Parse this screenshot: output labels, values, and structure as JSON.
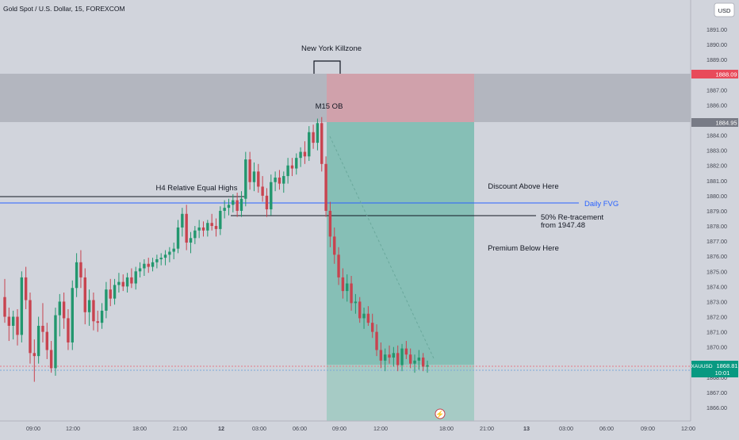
{
  "header": {
    "symbol_title": "Gold Spot / U.S. Dollar, 15, FOREXCOM",
    "currency_button": "USD"
  },
  "colors": {
    "background": "#d1d4dc",
    "bull": "#22976e",
    "bear": "#c8434f",
    "zone_grey": "#b3b6bf",
    "stop_zone": "#d0a1ab",
    "target_zone": "#86bfb6",
    "fvg_line": "#2962ff",
    "axis_text": "#434651",
    "price_red": "#e84a5a",
    "price_grey": "#787b86",
    "price_green": "#089981"
  },
  "price_axis": {
    "ticks": [
      "1891.00",
      "1890.00",
      "1889.00",
      "1888.00",
      "1887.00",
      "1886.00",
      "1885.00",
      "1884.00",
      "1883.00",
      "1882.00",
      "1881.00",
      "1880.00",
      "1879.00",
      "1878.00",
      "1877.00",
      "1876.00",
      "1875.00",
      "1874.00",
      "1873.00",
      "1872.00",
      "1871.00",
      "1870.00",
      "1869.00",
      "1868.00",
      "1867.00",
      "1866.00"
    ],
    "badge_top": "1888.09",
    "badge_bottom": "1884.95",
    "current_symbol": "XAUUSD",
    "current_price": "1868.81",
    "countdown": "10:01"
  },
  "time_axis": {
    "labels": [
      "09:00",
      "12:00",
      "18:00",
      "21:00",
      "12",
      "03:00",
      "06:00",
      "09:00",
      "12:00",
      "18:00",
      "21:00",
      "13",
      "03:00",
      "06:00",
      "09:00",
      "12:00"
    ]
  },
  "annotations": {
    "killzone": "New York Killzone",
    "ob": "M15 OB",
    "equal_highs": "H4 Relative Equal Highs",
    "discount": "Discount Above Here",
    "fvg": "Daily FVG",
    "retrace_line1": "50% Re-tracement",
    "retrace_line2": "from 1947.48",
    "premium": "Premium Below Here"
  },
  "chart_data": {
    "type": "candlestick",
    "timeframe": "15",
    "ylim": [
      1865.3,
      1891.9
    ],
    "levels": {
      "supply_zone": [
        1884.95,
        1888.09
      ],
      "equal_highs": 1879.6,
      "daily_fvg": 1879.4,
      "retracement_50": 1878.9,
      "current_price": 1868.81
    },
    "position": {
      "side": "short",
      "entry": 1884.95,
      "stop": 1888.09,
      "target_top": 1868.8,
      "target_bottom": 1865.3
    },
    "candles": [
      {
        "o": 1873.3,
        "h": 1874.5,
        "l": 1871.6,
        "c": 1872.0
      },
      {
        "o": 1872.0,
        "h": 1872.6,
        "l": 1870.4,
        "c": 1871.4
      },
      {
        "o": 1871.4,
        "h": 1872.4,
        "l": 1870.5,
        "c": 1872.0
      },
      {
        "o": 1872.0,
        "h": 1872.5,
        "l": 1870.1,
        "c": 1870.8
      },
      {
        "o": 1870.8,
        "h": 1875.0,
        "l": 1870.3,
        "c": 1874.6
      },
      {
        "o": 1874.6,
        "h": 1875.3,
        "l": 1872.5,
        "c": 1873.1
      },
      {
        "o": 1873.1,
        "h": 1873.6,
        "l": 1868.9,
        "c": 1869.6
      },
      {
        "o": 1869.6,
        "h": 1870.5,
        "l": 1867.7,
        "c": 1869.4
      },
      {
        "o": 1869.4,
        "h": 1872.0,
        "l": 1868.9,
        "c": 1871.4
      },
      {
        "o": 1871.4,
        "h": 1872.9,
        "l": 1870.3,
        "c": 1871.0
      },
      {
        "o": 1871.0,
        "h": 1871.6,
        "l": 1869.2,
        "c": 1869.8
      },
      {
        "o": 1869.8,
        "h": 1870.4,
        "l": 1868.3,
        "c": 1868.6
      },
      {
        "o": 1868.6,
        "h": 1872.6,
        "l": 1868.1,
        "c": 1872.1
      },
      {
        "o": 1872.1,
        "h": 1873.5,
        "l": 1870.7,
        "c": 1873.0
      },
      {
        "o": 1873.0,
        "h": 1873.6,
        "l": 1871.2,
        "c": 1871.9
      },
      {
        "o": 1871.9,
        "h": 1872.5,
        "l": 1869.8,
        "c": 1870.3
      },
      {
        "o": 1870.3,
        "h": 1874.4,
        "l": 1869.8,
        "c": 1873.9
      },
      {
        "o": 1873.9,
        "h": 1876.2,
        "l": 1873.3,
        "c": 1875.6
      },
      {
        "o": 1875.6,
        "h": 1876.4,
        "l": 1873.9,
        "c": 1874.6
      },
      {
        "o": 1874.6,
        "h": 1875.2,
        "l": 1871.5,
        "c": 1872.3
      },
      {
        "o": 1872.3,
        "h": 1873.8,
        "l": 1871.4,
        "c": 1873.1
      },
      {
        "o": 1873.1,
        "h": 1873.6,
        "l": 1871.1,
        "c": 1871.7
      },
      {
        "o": 1871.7,
        "h": 1872.4,
        "l": 1871.0,
        "c": 1871.6
      },
      {
        "o": 1871.6,
        "h": 1872.9,
        "l": 1871.2,
        "c": 1872.4
      },
      {
        "o": 1872.4,
        "h": 1874.3,
        "l": 1871.9,
        "c": 1873.8
      },
      {
        "o": 1873.8,
        "h": 1874.5,
        "l": 1872.7,
        "c": 1873.2
      },
      {
        "o": 1873.2,
        "h": 1874.5,
        "l": 1872.8,
        "c": 1874.1
      },
      {
        "o": 1874.1,
        "h": 1874.9,
        "l": 1873.6,
        "c": 1874.3
      },
      {
        "o": 1874.3,
        "h": 1874.8,
        "l": 1873.7,
        "c": 1874.0
      },
      {
        "o": 1874.0,
        "h": 1874.9,
        "l": 1873.6,
        "c": 1874.6
      },
      {
        "o": 1874.6,
        "h": 1875.2,
        "l": 1873.9,
        "c": 1874.2
      },
      {
        "o": 1874.2,
        "h": 1875.3,
        "l": 1873.8,
        "c": 1875.0
      },
      {
        "o": 1875.0,
        "h": 1875.6,
        "l": 1874.6,
        "c": 1875.2
      },
      {
        "o": 1875.2,
        "h": 1875.8,
        "l": 1874.7,
        "c": 1875.5
      },
      {
        "o": 1875.5,
        "h": 1875.9,
        "l": 1874.9,
        "c": 1875.3
      },
      {
        "o": 1875.3,
        "h": 1875.9,
        "l": 1875.0,
        "c": 1875.6
      },
      {
        "o": 1875.6,
        "h": 1876.1,
        "l": 1875.2,
        "c": 1875.8
      },
      {
        "o": 1875.8,
        "h": 1876.2,
        "l": 1875.4,
        "c": 1875.9
      },
      {
        "o": 1875.9,
        "h": 1876.4,
        "l": 1875.4,
        "c": 1876.1
      },
      {
        "o": 1876.1,
        "h": 1876.6,
        "l": 1875.6,
        "c": 1876.3
      },
      {
        "o": 1876.3,
        "h": 1876.9,
        "l": 1875.8,
        "c": 1876.5
      },
      {
        "o": 1876.5,
        "h": 1878.4,
        "l": 1876.2,
        "c": 1877.9
      },
      {
        "o": 1877.9,
        "h": 1879.2,
        "l": 1877.3,
        "c": 1878.8
      },
      {
        "o": 1878.8,
        "h": 1879.4,
        "l": 1876.4,
        "c": 1876.9
      },
      {
        "o": 1876.9,
        "h": 1877.6,
        "l": 1876.2,
        "c": 1877.2
      },
      {
        "o": 1877.2,
        "h": 1878.0,
        "l": 1876.8,
        "c": 1877.7
      },
      {
        "o": 1877.7,
        "h": 1878.4,
        "l": 1877.2,
        "c": 1877.9
      },
      {
        "o": 1877.9,
        "h": 1878.3,
        "l": 1877.3,
        "c": 1877.7
      },
      {
        "o": 1877.7,
        "h": 1878.4,
        "l": 1877.3,
        "c": 1878.2
      },
      {
        "o": 1878.2,
        "h": 1878.8,
        "l": 1877.7,
        "c": 1878.0
      },
      {
        "o": 1878.0,
        "h": 1878.5,
        "l": 1877.3,
        "c": 1877.8
      },
      {
        "o": 1877.8,
        "h": 1879.3,
        "l": 1877.4,
        "c": 1879.0
      },
      {
        "o": 1879.0,
        "h": 1879.7,
        "l": 1878.5,
        "c": 1879.2
      },
      {
        "o": 1879.2,
        "h": 1879.8,
        "l": 1878.7,
        "c": 1879.4
      },
      {
        "o": 1879.4,
        "h": 1880.1,
        "l": 1878.9,
        "c": 1879.7
      },
      {
        "o": 1879.7,
        "h": 1880.2,
        "l": 1878.6,
        "c": 1879.0
      },
      {
        "o": 1879.0,
        "h": 1880.3,
        "l": 1878.6,
        "c": 1879.8
      },
      {
        "o": 1879.8,
        "h": 1882.9,
        "l": 1879.3,
        "c": 1882.4
      },
      {
        "o": 1882.4,
        "h": 1882.9,
        "l": 1880.4,
        "c": 1880.9
      },
      {
        "o": 1880.9,
        "h": 1882.2,
        "l": 1880.3,
        "c": 1881.6
      },
      {
        "o": 1881.6,
        "h": 1882.1,
        "l": 1880.2,
        "c": 1880.6
      },
      {
        "o": 1880.6,
        "h": 1881.3,
        "l": 1879.6,
        "c": 1880.0
      },
      {
        "o": 1880.0,
        "h": 1880.5,
        "l": 1878.6,
        "c": 1879.1
      },
      {
        "o": 1879.1,
        "h": 1881.4,
        "l": 1878.7,
        "c": 1880.9
      },
      {
        "o": 1880.9,
        "h": 1881.6,
        "l": 1880.3,
        "c": 1881.2
      },
      {
        "o": 1881.2,
        "h": 1881.7,
        "l": 1880.4,
        "c": 1880.8
      },
      {
        "o": 1880.8,
        "h": 1881.6,
        "l": 1880.2,
        "c": 1881.3
      },
      {
        "o": 1881.3,
        "h": 1882.5,
        "l": 1880.8,
        "c": 1882.0
      },
      {
        "o": 1882.0,
        "h": 1882.5,
        "l": 1881.3,
        "c": 1881.8
      },
      {
        "o": 1881.8,
        "h": 1882.8,
        "l": 1881.4,
        "c": 1882.5
      },
      {
        "o": 1882.5,
        "h": 1883.2,
        "l": 1881.9,
        "c": 1882.9
      },
      {
        "o": 1882.9,
        "h": 1883.6,
        "l": 1882.1,
        "c": 1882.6
      },
      {
        "o": 1882.6,
        "h": 1884.6,
        "l": 1882.3,
        "c": 1884.2
      },
      {
        "o": 1884.2,
        "h": 1884.7,
        "l": 1883.1,
        "c": 1883.5
      },
      {
        "o": 1883.5,
        "h": 1885.1,
        "l": 1883.0,
        "c": 1884.8
      },
      {
        "o": 1884.8,
        "h": 1885.2,
        "l": 1881.6,
        "c": 1882.1
      },
      {
        "o": 1882.1,
        "h": 1882.6,
        "l": 1878.6,
        "c": 1879.0
      },
      {
        "o": 1879.0,
        "h": 1879.6,
        "l": 1876.6,
        "c": 1877.3
      },
      {
        "o": 1877.3,
        "h": 1877.9,
        "l": 1875.5,
        "c": 1876.1
      },
      {
        "o": 1876.1,
        "h": 1876.6,
        "l": 1874.1,
        "c": 1874.6
      },
      {
        "o": 1874.6,
        "h": 1875.2,
        "l": 1873.2,
        "c": 1873.7
      },
      {
        "o": 1873.7,
        "h": 1874.8,
        "l": 1873.0,
        "c": 1874.2
      },
      {
        "o": 1874.2,
        "h": 1874.7,
        "l": 1872.4,
        "c": 1872.9
      },
      {
        "o": 1872.9,
        "h": 1873.5,
        "l": 1872.2,
        "c": 1873.0
      },
      {
        "o": 1873.0,
        "h": 1873.3,
        "l": 1871.6,
        "c": 1871.9
      },
      {
        "o": 1871.9,
        "h": 1872.6,
        "l": 1871.2,
        "c": 1872.2
      },
      {
        "o": 1872.2,
        "h": 1872.7,
        "l": 1871.4,
        "c": 1871.6
      },
      {
        "o": 1871.6,
        "h": 1872.2,
        "l": 1870.6,
        "c": 1871.0
      },
      {
        "o": 1871.0,
        "h": 1871.5,
        "l": 1869.4,
        "c": 1869.8
      },
      {
        "o": 1869.8,
        "h": 1870.3,
        "l": 1868.6,
        "c": 1869.1
      },
      {
        "o": 1869.1,
        "h": 1869.9,
        "l": 1868.4,
        "c": 1869.5
      },
      {
        "o": 1869.5,
        "h": 1870.1,
        "l": 1868.9,
        "c": 1869.3
      },
      {
        "o": 1869.3,
        "h": 1870.0,
        "l": 1868.7,
        "c": 1869.6
      },
      {
        "o": 1869.6,
        "h": 1870.1,
        "l": 1868.4,
        "c": 1868.8
      },
      {
        "o": 1868.8,
        "h": 1870.2,
        "l": 1868.4,
        "c": 1869.9
      },
      {
        "o": 1869.9,
        "h": 1870.4,
        "l": 1869.2,
        "c": 1869.5
      },
      {
        "o": 1869.5,
        "h": 1869.9,
        "l": 1868.6,
        "c": 1868.9
      },
      {
        "o": 1868.9,
        "h": 1869.5,
        "l": 1868.3,
        "c": 1869.1
      },
      {
        "o": 1869.1,
        "h": 1869.8,
        "l": 1868.5,
        "c": 1869.3
      },
      {
        "o": 1869.3,
        "h": 1869.6,
        "l": 1868.4,
        "c": 1868.7
      },
      {
        "o": 1868.7,
        "h": 1869.1,
        "l": 1868.3,
        "c": 1868.8
      }
    ]
  }
}
